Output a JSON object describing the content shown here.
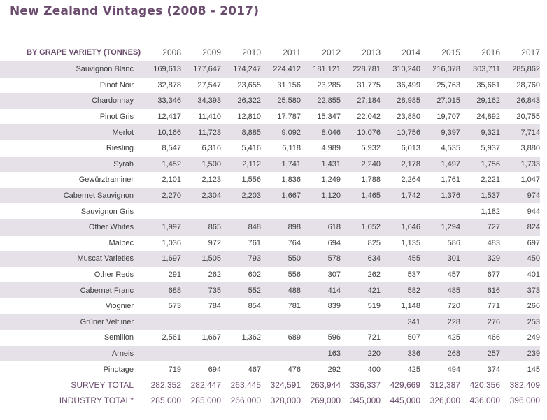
{
  "title": "New Zealand Vintages (2008 - 2017)",
  "table": {
    "corner_label": "BY GRAPE VARIETY (TONNES)",
    "years": [
      "2008",
      "2009",
      "2010",
      "2011",
      "2012",
      "2013",
      "2014",
      "2015",
      "2016",
      "2017"
    ],
    "rows": [
      {
        "variety": "Sauvignon Blanc",
        "values": [
          "169,613",
          "177,647",
          "174,247",
          "224,412",
          "181,121",
          "228,781",
          "310,240",
          "216,078",
          "303,711",
          "285,862"
        ]
      },
      {
        "variety": "Pinot Noir",
        "values": [
          "32,878",
          "27,547",
          "23,655",
          "31,156",
          "23,285",
          "31,775",
          "36,499",
          "25,763",
          "35,661",
          "28,760"
        ]
      },
      {
        "variety": "Chardonnay",
        "values": [
          "33,346",
          "34,393",
          "26,322",
          "25,580",
          "22,855",
          "27,184",
          "28,985",
          "27,015",
          "29,162",
          "26,843"
        ]
      },
      {
        "variety": "Pinot Gris",
        "values": [
          "12,417",
          "11,410",
          "12,810",
          "17,787",
          "15,347",
          "22,042",
          "23,880",
          "19,707",
          "24,892",
          "20,755"
        ]
      },
      {
        "variety": "Merlot",
        "values": [
          "10,166",
          "11,723",
          "8,885",
          "9,092",
          "8,046",
          "10,076",
          "10,756",
          "9,397",
          "9,321",
          "7,714"
        ]
      },
      {
        "variety": "Riesling",
        "values": [
          "8,547",
          "6,316",
          "5,416",
          "6,118",
          "4,989",
          "5,932",
          "6,013",
          "4,535",
          "5,937",
          "3,880"
        ]
      },
      {
        "variety": "Syrah",
        "values": [
          "1,452",
          "1,500",
          "2,112",
          "1,741",
          "1,431",
          "2,240",
          "2,178",
          "1,497",
          "1,756",
          "1,733"
        ]
      },
      {
        "variety": "Gewürztraminer",
        "values": [
          "2,101",
          "2,123",
          "1,556",
          "1,836",
          "1,249",
          "1,788",
          "2,264",
          "1,761",
          "2,221",
          "1,047"
        ]
      },
      {
        "variety": "Cabernet Sauvignon",
        "values": [
          "2,270",
          "2,304",
          "2,203",
          "1,667",
          "1,120",
          "1,465",
          "1,742",
          "1,376",
          "1,537",
          "974"
        ]
      },
      {
        "variety": "Sauvignon Gris",
        "values": [
          "",
          "",
          "",
          "",
          "",
          "",
          "",
          "",
          "1,182",
          "944"
        ]
      },
      {
        "variety": "Other Whites",
        "values": [
          "1,997",
          "865",
          "848",
          "898",
          "618",
          "1,052",
          "1,646",
          "1,294",
          "727",
          "824"
        ]
      },
      {
        "variety": "Malbec",
        "values": [
          "1,036",
          "972",
          "761",
          "764",
          "694",
          "825",
          "1,135",
          "586",
          "483",
          "697"
        ]
      },
      {
        "variety": "Muscat Varieties",
        "values": [
          "1,697",
          "1,505",
          "793",
          "550",
          "578",
          "634",
          "455",
          "301",
          "329",
          "450"
        ]
      },
      {
        "variety": "Other Reds",
        "values": [
          "291",
          "262",
          "602",
          "556",
          "307",
          "262",
          "537",
          "457",
          "677",
          "401"
        ]
      },
      {
        "variety": "Cabernet Franc",
        "values": [
          "688",
          "735",
          "552",
          "488",
          "414",
          "421",
          "582",
          "485",
          "616",
          "373"
        ]
      },
      {
        "variety": "Viognier",
        "values": [
          "573",
          "784",
          "854",
          "781",
          "839",
          "519",
          "1,148",
          "720",
          "771",
          "266"
        ]
      },
      {
        "variety": "Grüner Veltliner",
        "values": [
          "",
          "",
          "",
          "",
          "",
          "",
          "341",
          "228",
          "276",
          "253"
        ]
      },
      {
        "variety": "Semillon",
        "values": [
          "2,561",
          "1,667",
          "1,362",
          "689",
          "596",
          "721",
          "507",
          "425",
          "466",
          "249"
        ]
      },
      {
        "variety": "Arneis",
        "values": [
          "",
          "",
          "",
          "",
          "163",
          "220",
          "336",
          "268",
          "257",
          "239"
        ]
      },
      {
        "variety": "Pinotage",
        "values": [
          "719",
          "694",
          "467",
          "476",
          "292",
          "400",
          "425",
          "494",
          "374",
          "145"
        ]
      }
    ],
    "totals": [
      {
        "label": "SURVEY TOTAL",
        "values": [
          "282,352",
          "282,447",
          "263,445",
          "324,591",
          "263,944",
          "336,337",
          "429,669",
          "312,387",
          "420,356",
          "382,409"
        ]
      },
      {
        "label": "INDUSTRY TOTAL*",
        "values": [
          "285,000",
          "285,000",
          "266,000",
          "328,000",
          "269,000",
          "345,000",
          "445,000",
          "326,000",
          "436,000",
          "396,000"
        ]
      }
    ]
  },
  "colors": {
    "title": "#6b4c6e",
    "stripe": "#e6e0e8",
    "text": "#3d3d3d"
  }
}
